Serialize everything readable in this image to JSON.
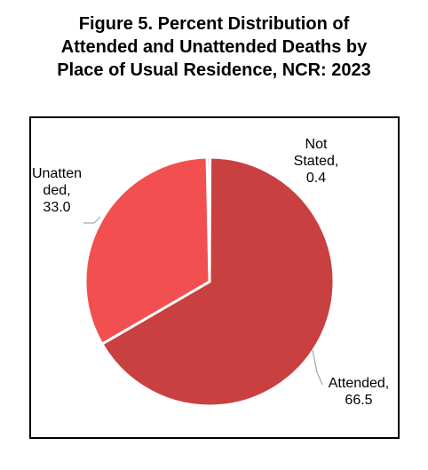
{
  "title_lines": [
    "Figure 5. Percent Distribution of",
    "Attended and Unattended Deaths by",
    "Place of Usual Residence, NCR: 2023"
  ],
  "chart_data": {
    "type": "pie",
    "title": "Figure 5. Percent Distribution of Attended and Unattended Deaths by Place of Usual Residence, NCR: 2023",
    "slices": [
      {
        "label": "Attended",
        "value": 66.5,
        "color": "#c94040",
        "label_lines": [
          "Attended,",
          "66.5"
        ]
      },
      {
        "label": "Unattended",
        "value": 33.0,
        "color": "#f25050",
        "label_lines": [
          "Unatten",
          "ded,",
          "33.0"
        ]
      },
      {
        "label": "Not Stated",
        "value": 0.4,
        "color": "#f25050",
        "label_lines": [
          "Not",
          "Stated,",
          "0.4"
        ]
      }
    ],
    "legend": "none"
  }
}
